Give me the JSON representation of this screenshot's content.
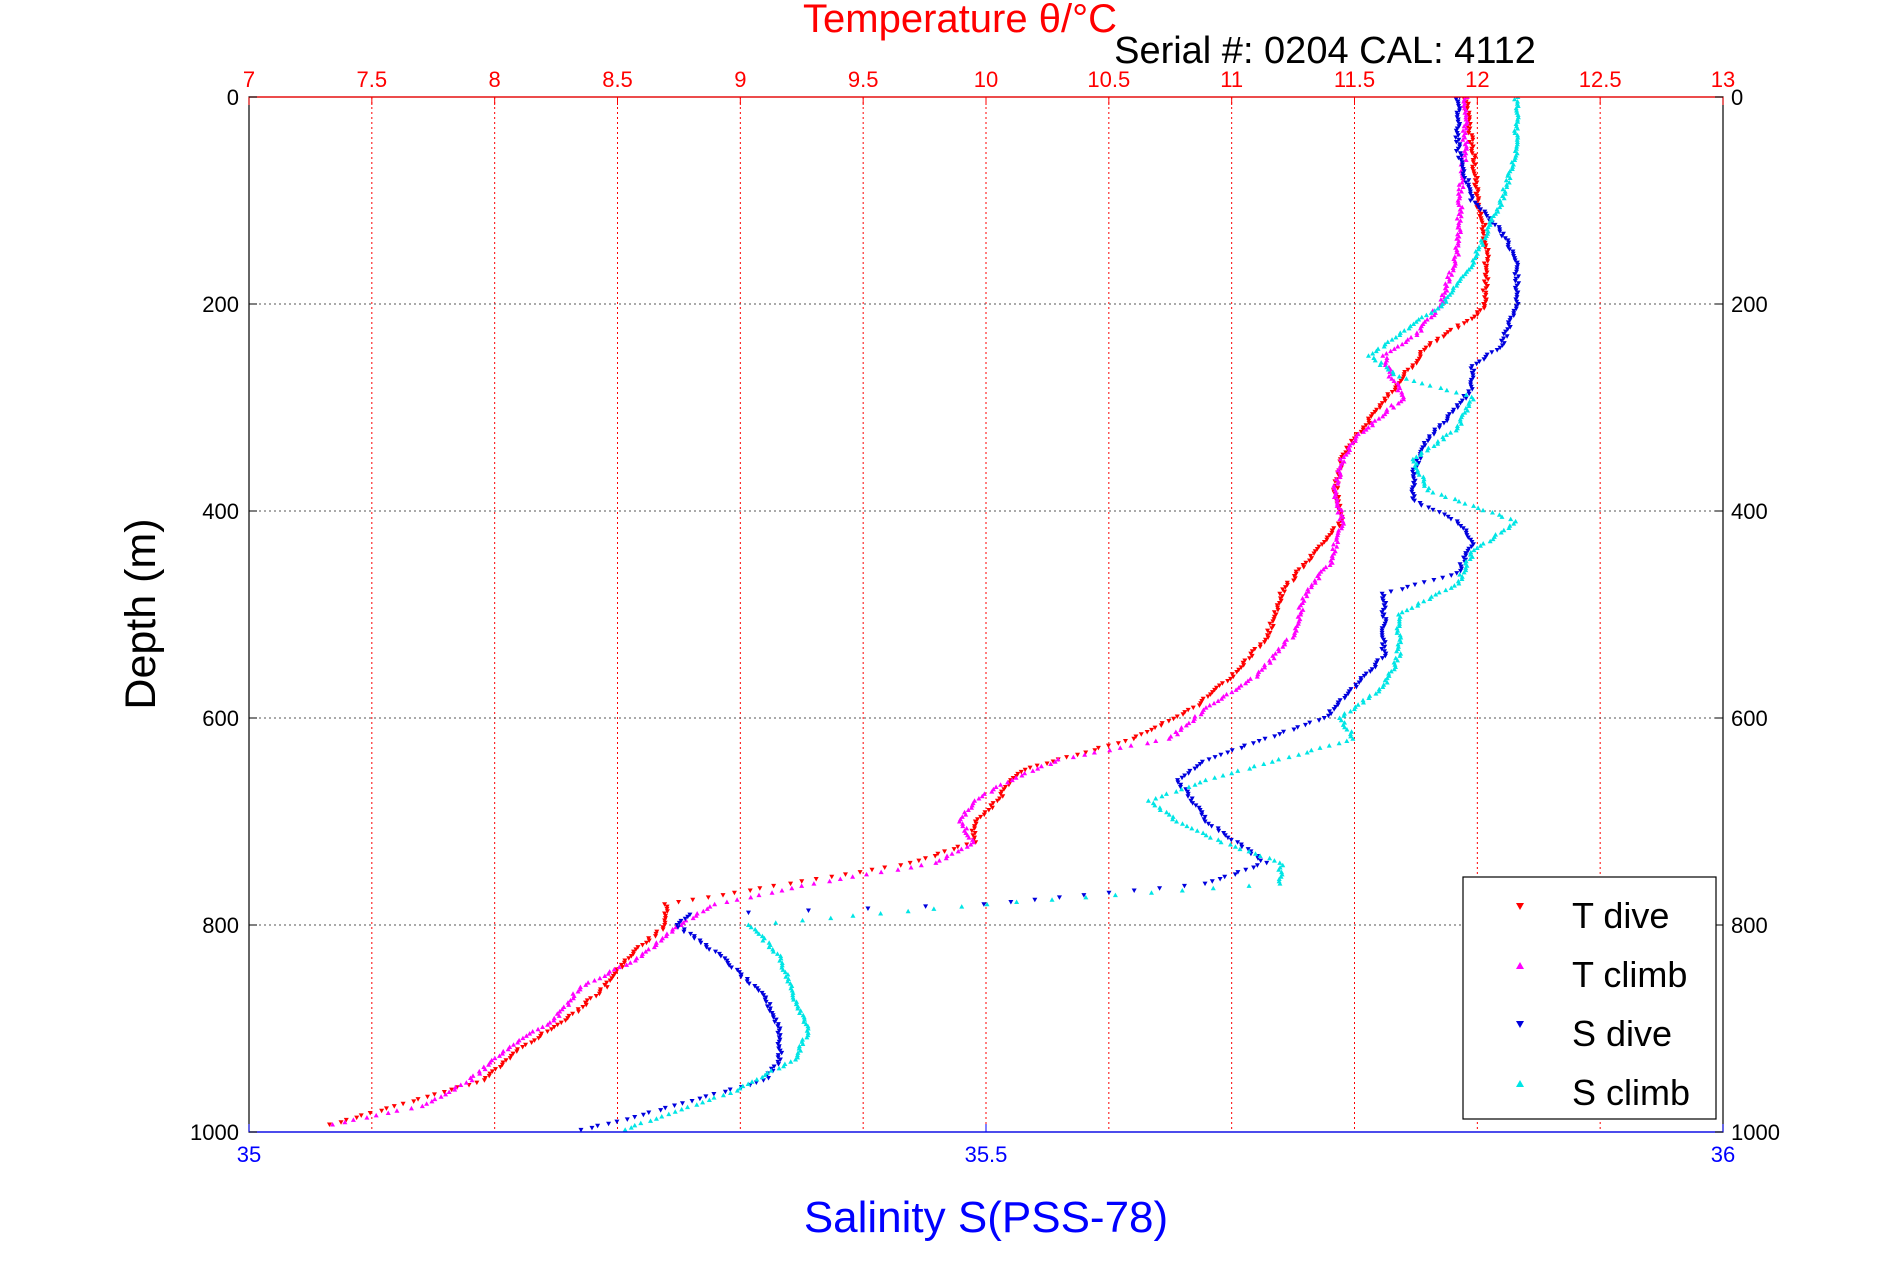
{
  "chart_data": {
    "type": "scatter",
    "title": "Temperature θ/°C",
    "subtitle": "Serial #: 0204  CAL: 4112",
    "ylabel": "Depth (m)",
    "xlabel_bottom": "Salinity S(PSS-78)",
    "xlabel_top": "Temperature θ/°C",
    "y_range": [
      0,
      1000
    ],
    "y_reversed": true,
    "x_top_range": [
      7,
      13
    ],
    "x_bottom_range": [
      35,
      36
    ],
    "y_ticks": [
      "0",
      "200",
      "400",
      "600",
      "800",
      "1000"
    ],
    "x_top_ticks": [
      "7",
      "7.5",
      "8",
      "8.5",
      "9",
      "9.5",
      "10",
      "10.5",
      "11",
      "11.5",
      "12",
      "12.5",
      "13"
    ],
    "x_bottom_ticks": [
      "35",
      "35.5",
      "36"
    ],
    "grid": true,
    "legend_position": "bottom-right",
    "colors": {
      "temperature_axis": "#ff0000",
      "salinity_axis": "#0000ff",
      "grid": "#555555"
    },
    "series": [
      {
        "name": "T dive",
        "axis": "temperature",
        "color": "#ff0000",
        "marker": "down-triangle",
        "depth": [
          0,
          50,
          100,
          130,
          150,
          200,
          210,
          240,
          270,
          300,
          330,
          350,
          380,
          410,
          450,
          480,
          520,
          560,
          590,
          620,
          640,
          650,
          660,
          680,
          700,
          720,
          740,
          760,
          780,
          800,
          830,
          860,
          890,
          920,
          950,
          975,
          995
        ],
        "values": [
          11.95,
          11.98,
          12.0,
          12.03,
          12.04,
          12.03,
          12.0,
          11.8,
          11.7,
          11.6,
          11.5,
          11.45,
          11.42,
          11.45,
          11.3,
          11.2,
          11.15,
          11.0,
          10.85,
          10.6,
          10.3,
          10.15,
          10.1,
          10.05,
          9.95,
          9.95,
          9.7,
          9.2,
          8.7,
          8.7,
          8.55,
          8.45,
          8.3,
          8.1,
          7.95,
          7.6,
          7.3
        ]
      },
      {
        "name": "T climb",
        "axis": "temperature",
        "color": "#ff00ff",
        "marker": "up-triangle",
        "depth": [
          0,
          50,
          100,
          150,
          200,
          230,
          250,
          270,
          290,
          300,
          330,
          350,
          380,
          410,
          450,
          480,
          520,
          560,
          590,
          620,
          640,
          660,
          680,
          700,
          720,
          740,
          760,
          780,
          800,
          830,
          860,
          890,
          920,
          950,
          975,
          995
        ],
        "values": [
          11.95,
          11.95,
          11.93,
          11.92,
          11.85,
          11.75,
          11.62,
          11.65,
          11.7,
          11.65,
          11.5,
          11.45,
          11.42,
          11.45,
          11.4,
          11.3,
          11.25,
          11.1,
          10.9,
          10.75,
          10.3,
          10.1,
          9.95,
          9.9,
          9.95,
          9.8,
          9.3,
          8.9,
          8.75,
          8.6,
          8.35,
          8.25,
          8.05,
          7.9,
          7.7,
          7.3
        ]
      },
      {
        "name": "S dive",
        "axis": "salinity",
        "color": "#0000dd",
        "marker": "down-triangle",
        "depth": [
          0,
          50,
          100,
          130,
          160,
          200,
          240,
          260,
          280,
          300,
          330,
          360,
          390,
          410,
          430,
          460,
          480,
          500,
          540,
          570,
          600,
          620,
          640,
          660,
          680,
          700,
          720,
          740,
          760,
          780,
          790,
          800,
          830,
          870,
          900,
          930,
          950,
          970,
          990,
          1000
        ],
        "values": [
          35.82,
          35.82,
          35.83,
          35.85,
          35.86,
          35.86,
          35.85,
          35.83,
          35.83,
          35.82,
          35.8,
          35.79,
          35.79,
          35.82,
          35.83,
          35.82,
          35.77,
          35.77,
          35.77,
          35.75,
          35.73,
          35.69,
          35.65,
          35.63,
          35.64,
          35.65,
          35.67,
          35.69,
          35.65,
          35.5,
          35.3,
          35.29,
          35.32,
          35.35,
          35.36,
          35.36,
          35.35,
          35.3,
          35.25,
          35.22
        ]
      },
      {
        "name": "S climb",
        "axis": "salinity",
        "color": "#00e5e5",
        "marker": "up-triangle",
        "depth": [
          0,
          50,
          100,
          130,
          160,
          200,
          230,
          250,
          270,
          290,
          320,
          350,
          380,
          410,
          440,
          470,
          500,
          540,
          570,
          600,
          620,
          640,
          660,
          680,
          700,
          720,
          740,
          760,
          780,
          800,
          830,
          870,
          900,
          930,
          960,
          985,
          1000
        ],
        "values": [
          35.86,
          35.86,
          35.85,
          35.84,
          35.83,
          35.81,
          35.78,
          35.76,
          35.78,
          35.83,
          35.82,
          35.79,
          35.8,
          35.86,
          35.83,
          35.82,
          35.78,
          35.78,
          35.77,
          35.74,
          35.75,
          35.7,
          35.65,
          35.61,
          35.63,
          35.66,
          35.7,
          35.7,
          35.5,
          35.34,
          35.36,
          35.37,
          35.38,
          35.37,
          35.33,
          35.28,
          35.25
        ]
      }
    ]
  }
}
